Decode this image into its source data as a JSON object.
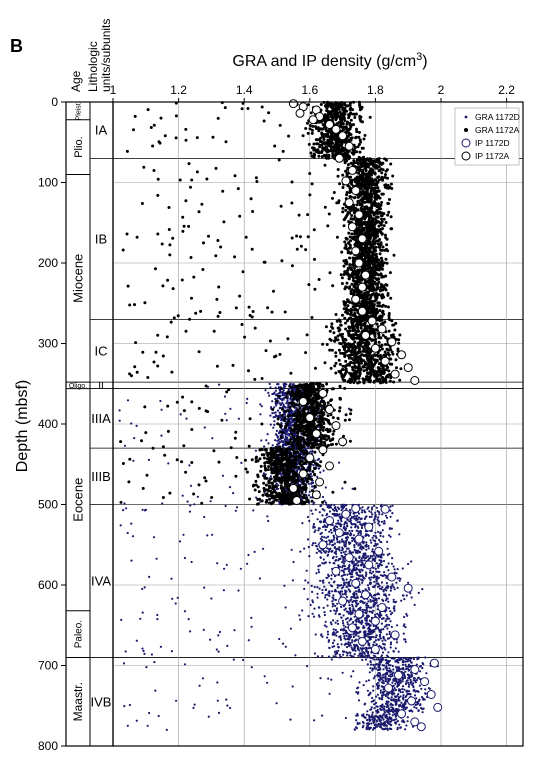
{
  "figure": {
    "panel_label": "B",
    "age_header": "Age",
    "units_header_line1": "Lithologic",
    "units_header_line2": "units/subunits"
  },
  "chart_data": {
    "type": "scatter",
    "title": "",
    "xlabel": "GRA and IP density (g/cm",
    "xlabel_sup": "3",
    "xlabel_close": ")",
    "ylabel": "Depth (mbsf)",
    "xlim": [
      1.0,
      2.25
    ],
    "ylim": [
      0,
      800
    ],
    "y_inverted": true,
    "x_axis_position": "top",
    "grid": true,
    "x_ticks": [
      {
        "v": 1.0,
        "label": "1"
      },
      {
        "v": 1.2,
        "label": "1.2"
      },
      {
        "v": 1.4,
        "label": "1.4"
      },
      {
        "v": 1.6,
        "label": "1.6"
      },
      {
        "v": 1.8,
        "label": "1.8"
      },
      {
        "v": 2.0,
        "label": "2"
      },
      {
        "v": 2.2,
        "label": "2.2"
      }
    ],
    "y_ticks": [
      {
        "v": 0,
        "label": "0"
      },
      {
        "v": 100,
        "label": "100"
      },
      {
        "v": 200,
        "label": "200"
      },
      {
        "v": 300,
        "label": "300"
      },
      {
        "v": 400,
        "label": "400"
      },
      {
        "v": 500,
        "label": "500"
      },
      {
        "v": 600,
        "label": "600"
      },
      {
        "v": 700,
        "label": "700"
      },
      {
        "v": 800,
        "label": "800"
      }
    ],
    "legend_position": "top-right",
    "series": [
      {
        "name": "GRA 1172D",
        "marker": "small-dot",
        "color": "#1a1a6e",
        "segments": [
          {
            "depth": [
              350,
              500
            ],
            "center": 1.55,
            "spread": 0.07
          },
          {
            "depth": [
              500,
              560
            ],
            "center": 1.72,
            "spread": 0.12
          },
          {
            "depth": [
              560,
              640
            ],
            "center": 1.76,
            "spread": 0.13
          },
          {
            "depth": [
              640,
              690
            ],
            "center": 1.76,
            "spread": 0.11
          },
          {
            "depth": [
              690,
              760
            ],
            "center": 1.86,
            "spread": 0.09
          },
          {
            "depth": [
              760,
              780
            ],
            "center": 1.82,
            "spread": 0.08
          }
        ]
      },
      {
        "name": "GRA 1172A",
        "marker": "dot",
        "color": "#000000",
        "segments": [
          {
            "depth": [
              0,
              70
            ],
            "center": 1.68,
            "spread": 0.07
          },
          {
            "depth": [
              70,
              270
            ],
            "center": 1.77,
            "spread": 0.06
          },
          {
            "depth": [
              270,
              350
            ],
            "center": 1.77,
            "spread": 0.09
          },
          {
            "depth": [
              350,
              430
            ],
            "center": 1.6,
            "spread": 0.07
          },
          {
            "depth": [
              430,
              500
            ],
            "center": 1.53,
            "spread": 0.08
          }
        ]
      },
      {
        "name": "IP 1172D",
        "marker": "open-circle",
        "color": "#1a1a6e",
        "points": [
          [
            1.74,
            505
          ],
          [
            1.83,
            506
          ],
          [
            1.71,
            512
          ],
          [
            1.66,
            520
          ],
          [
            1.78,
            528
          ],
          [
            1.69,
            535
          ],
          [
            1.75,
            543
          ],
          [
            1.64,
            550
          ],
          [
            1.81,
            558
          ],
          [
            1.72,
            566
          ],
          [
            1.78,
            575
          ],
          [
            1.68,
            583
          ],
          [
            1.85,
            590
          ],
          [
            1.74,
            598
          ],
          [
            1.9,
            604
          ],
          [
            1.77,
            612
          ],
          [
            1.7,
            620
          ],
          [
            1.82,
            628
          ],
          [
            1.75,
            636
          ],
          [
            1.8,
            645
          ],
          [
            1.73,
            653
          ],
          [
            1.86,
            662
          ],
          [
            1.76,
            670
          ],
          [
            1.8,
            680
          ],
          [
            1.98,
            697
          ],
          [
            1.92,
            705
          ],
          [
            1.87,
            712
          ],
          [
            1.95,
            720
          ],
          [
            1.84,
            728
          ],
          [
            1.97,
            736
          ],
          [
            1.91,
            744
          ],
          [
            1.99,
            752
          ],
          [
            1.88,
            760
          ],
          [
            1.92,
            770
          ],
          [
            1.94,
            776
          ]
        ]
      },
      {
        "name": "IP 1172A",
        "marker": "open-circle",
        "color": "#000000",
        "points": [
          [
            1.55,
            2
          ],
          [
            1.58,
            6
          ],
          [
            1.62,
            10
          ],
          [
            1.57,
            14
          ],
          [
            1.63,
            18
          ],
          [
            1.61,
            22
          ],
          [
            1.66,
            28
          ],
          [
            1.68,
            34
          ],
          [
            1.7,
            42
          ],
          [
            1.72,
            55
          ],
          [
            1.69,
            70
          ],
          [
            1.73,
            85
          ],
          [
            1.71,
            98
          ],
          [
            1.74,
            110
          ],
          [
            1.72,
            125
          ],
          [
            1.75,
            140
          ],
          [
            1.73,
            155
          ],
          [
            1.76,
            170
          ],
          [
            1.74,
            185
          ],
          [
            1.75,
            200
          ],
          [
            1.77,
            215
          ],
          [
            1.76,
            230
          ],
          [
            1.74,
            245
          ],
          [
            1.76,
            260
          ],
          [
            1.79,
            272
          ],
          [
            1.82,
            282
          ],
          [
            1.77,
            290
          ],
          [
            1.85,
            298
          ],
          [
            1.8,
            306
          ],
          [
            1.88,
            314
          ],
          [
            1.83,
            322
          ],
          [
            1.9,
            330
          ],
          [
            1.86,
            338
          ],
          [
            1.92,
            346
          ],
          [
            1.64,
            362
          ],
          [
            1.58,
            372
          ],
          [
            1.66,
            382
          ],
          [
            1.6,
            392
          ],
          [
            1.68,
            402
          ],
          [
            1.62,
            412
          ],
          [
            1.7,
            422
          ],
          [
            1.64,
            432
          ],
          [
            1.6,
            442
          ],
          [
            1.66,
            452
          ],
          [
            1.58,
            462
          ],
          [
            1.63,
            472
          ],
          [
            1.55,
            480
          ],
          [
            1.62,
            488
          ],
          [
            1.56,
            495
          ]
        ]
      }
    ]
  },
  "age_column": [
    {
      "label": "Pleist.",
      "from": 0,
      "to": 22,
      "size": 7,
      "rotate": true
    },
    {
      "label": "Plio.",
      "from": 22,
      "to": 90,
      "size": 11,
      "rotate": true
    },
    {
      "label": "Miocene",
      "from": 90,
      "to": 348,
      "size": 13,
      "rotate": true
    },
    {
      "label": "Oligo.",
      "from": 348,
      "to": 356,
      "size": 7,
      "rotate": false
    },
    {
      "label": "Eocene",
      "from": 356,
      "to": 632,
      "size": 13,
      "rotate": true
    },
    {
      "label": "Paleo.",
      "from": 632,
      "to": 690,
      "size": 10,
      "rotate": true
    },
    {
      "label": "Maastr.",
      "from": 690,
      "to": 800,
      "size": 12,
      "rotate": true
    }
  ],
  "units_column": [
    {
      "label": "IA",
      "from": 0,
      "to": 70
    },
    {
      "label": "IB",
      "from": 70,
      "to": 270
    },
    {
      "label": "IC",
      "from": 270,
      "to": 348
    },
    {
      "label": "II",
      "from": 348,
      "to": 356
    },
    {
      "label": "IIIA",
      "from": 356,
      "to": 430
    },
    {
      "label": "IIIB",
      "from": 430,
      "to": 500
    },
    {
      "label": "IVA",
      "from": 500,
      "to": 690
    },
    {
      "label": "IVB",
      "from": 690,
      "to": 800
    }
  ]
}
